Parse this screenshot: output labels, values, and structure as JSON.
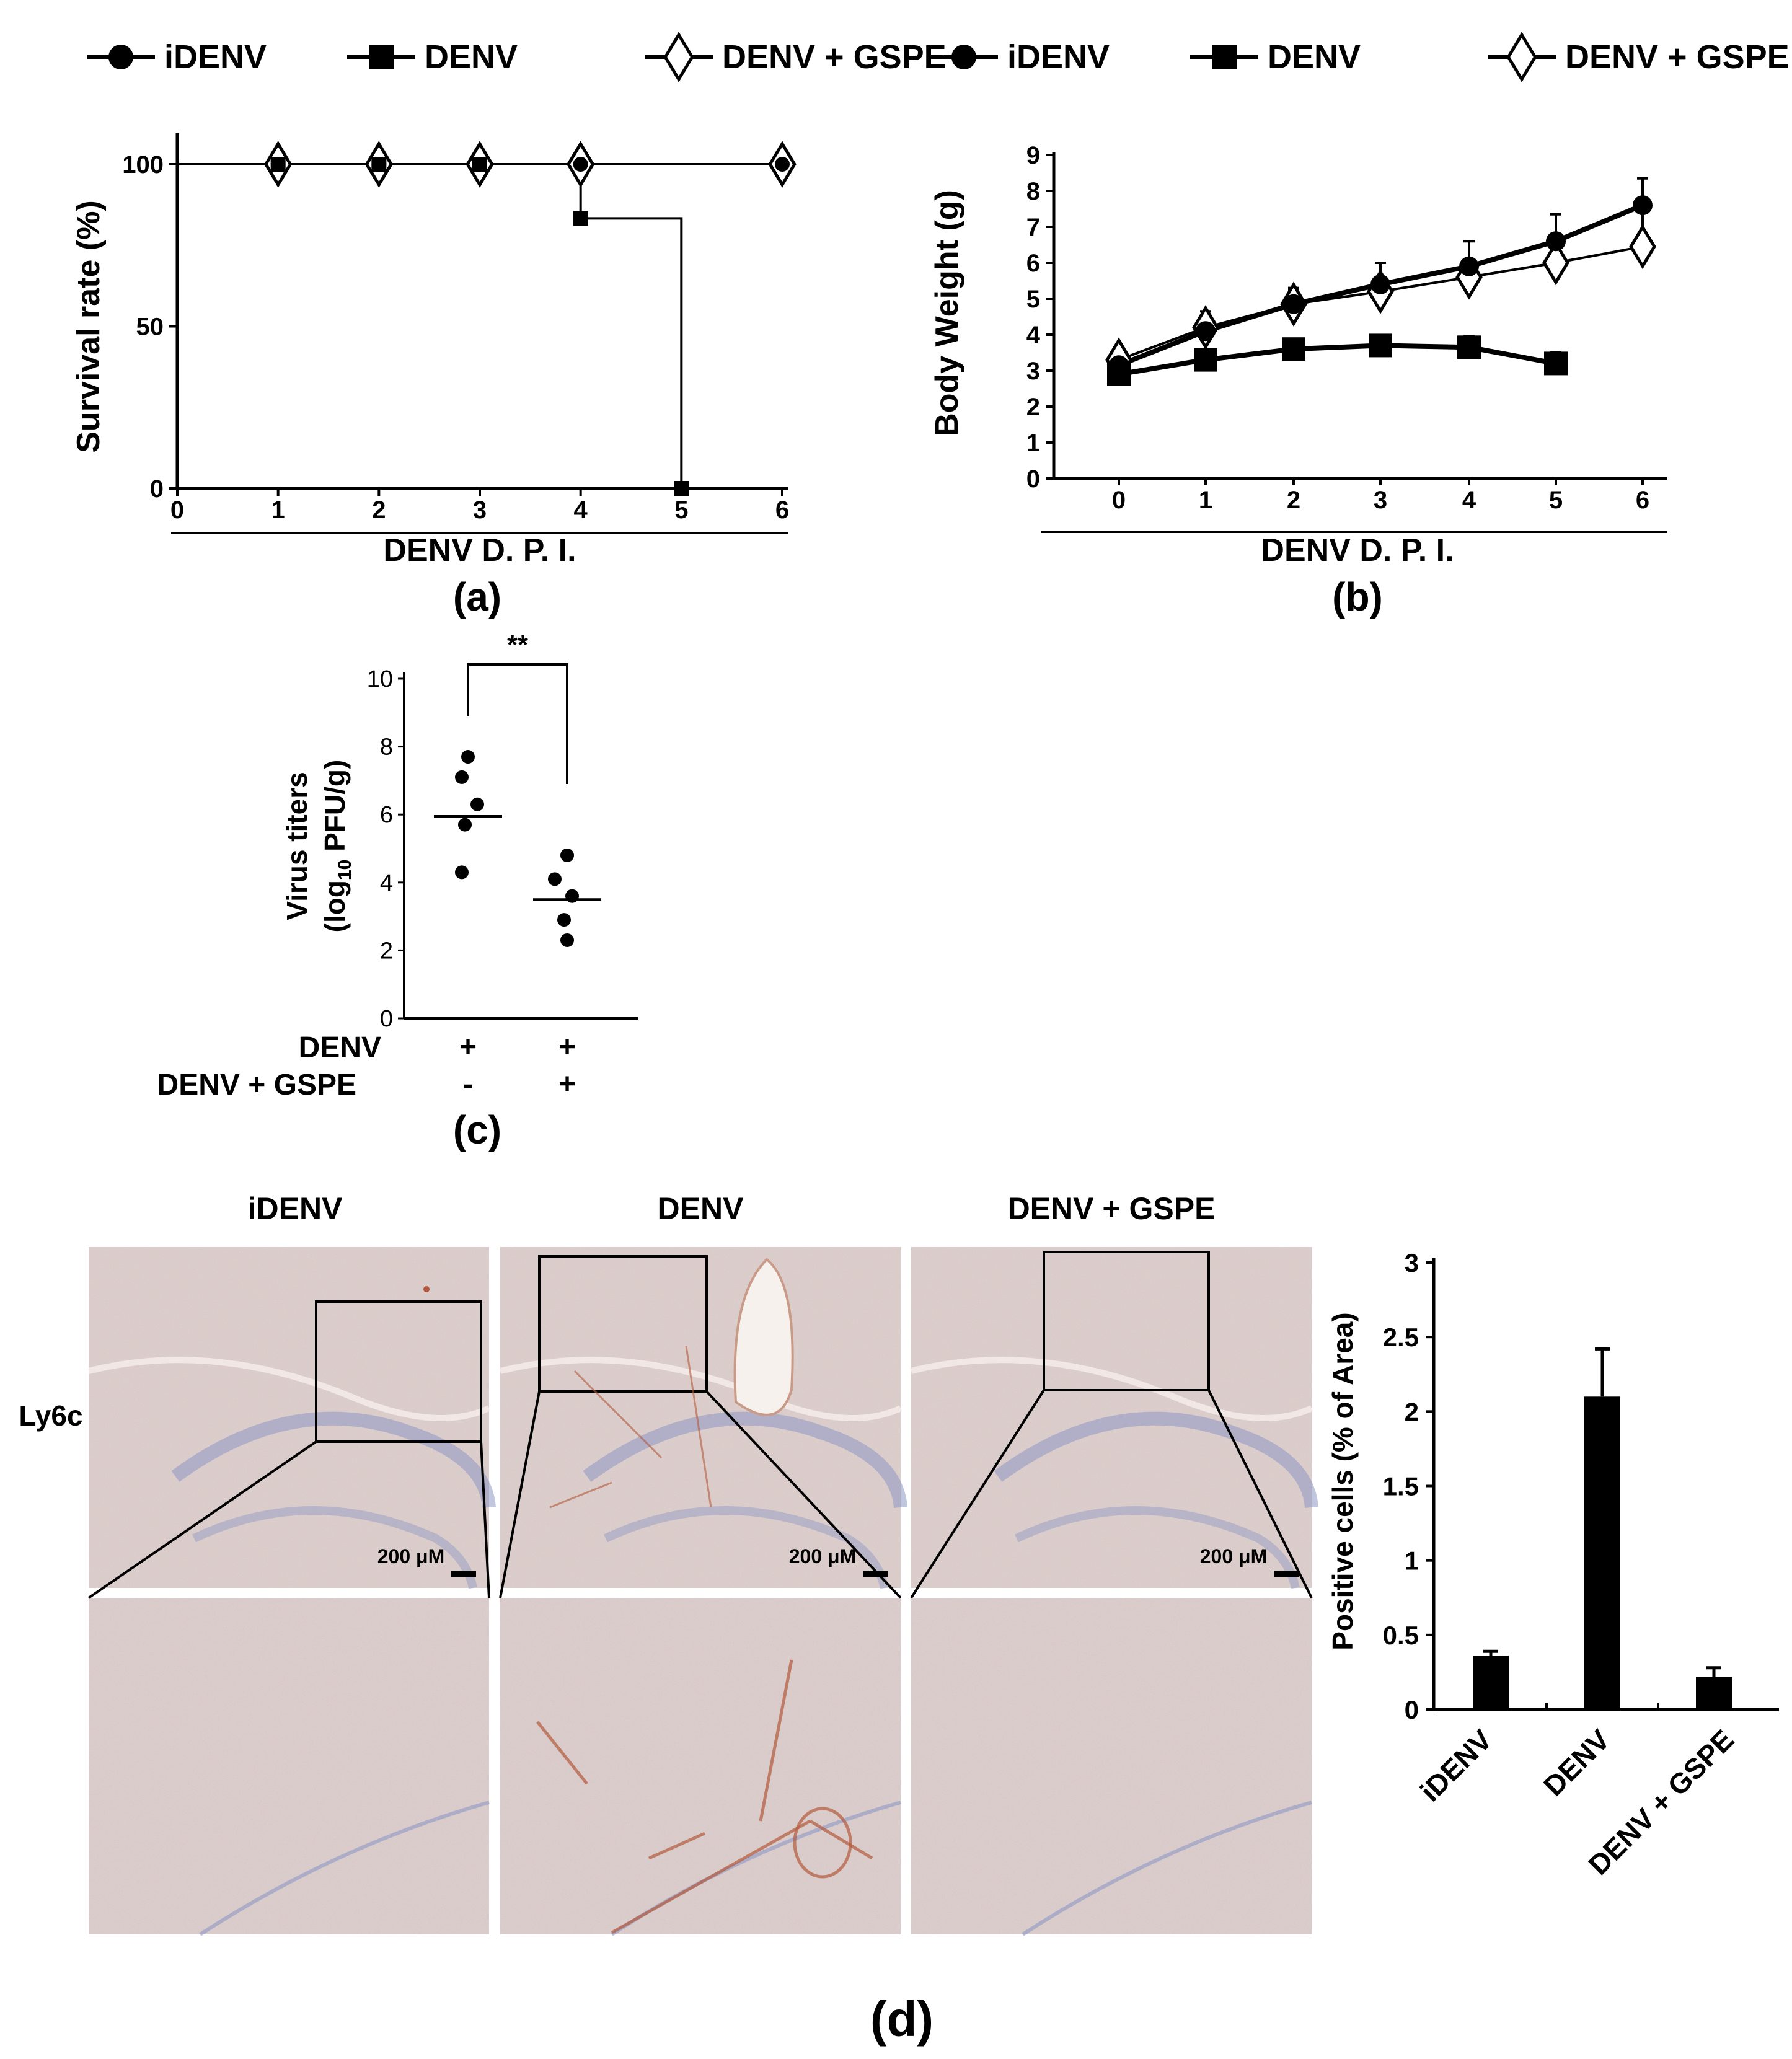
{
  "legend_a": [
    {
      "label": "iDENV",
      "marker": "circle-filled"
    },
    {
      "label": "DENV",
      "marker": "square-filled"
    },
    {
      "label": "DENV  + GSPE",
      "marker": "diamond-open"
    }
  ],
  "legend_b": [
    {
      "label": "iDENV",
      "marker": "circle-filled"
    },
    {
      "label": "DENV",
      "marker": "square-filled"
    },
    {
      "label": "DENV  + GSPE",
      "marker": "diamond-open"
    }
  ],
  "panel_labels": {
    "a": "(a)",
    "b": "(b)",
    "c": "(c)",
    "d": "(d)"
  },
  "colors": {
    "ink": "#000000",
    "tissue_base": "#e3d3cc",
    "hematoxylin": "#8e97c4",
    "dab_stain": "#b45a3c"
  },
  "chart_data": [
    {
      "type": "line",
      "panel": "(a)",
      "xlabel": "DENV D. P. I.",
      "ylabel": "Survival rate (%)",
      "xlim": [
        0,
        6
      ],
      "ylim": [
        0,
        100
      ],
      "xticks": [
        "0",
        "1",
        "2",
        "3",
        "4",
        "5",
        "6"
      ],
      "yticks": [
        "0",
        "50",
        "100"
      ],
      "step": true,
      "series": [
        {
          "name": "iDENV",
          "marker": "circle-filled",
          "x": [
            1,
            2,
            3,
            4,
            6
          ],
          "y": [
            100,
            100,
            100,
            100,
            100
          ]
        },
        {
          "name": "DENV",
          "marker": "square-filled",
          "x": [
            1,
            2,
            3,
            4,
            5
          ],
          "y": [
            100,
            100,
            100,
            83.3,
            0
          ]
        },
        {
          "name": "DENV  + GSPE",
          "marker": "diamond-open",
          "x": [
            1,
            2,
            3,
            4,
            6
          ],
          "y": [
            100,
            100,
            100,
            100,
            100
          ]
        }
      ]
    },
    {
      "type": "line",
      "panel": "(b)",
      "xlabel": "DENV D. P. I.",
      "ylabel": "Body Weight (g)",
      "ylim": [
        0,
        9
      ],
      "xticks": [
        "0",
        "1",
        "2",
        "3",
        "4",
        "5",
        "6"
      ],
      "yticks": [
        "0",
        "1",
        "2",
        "3",
        "4",
        "5",
        "6",
        "7",
        "8",
        "9"
      ],
      "series": [
        {
          "name": "iDENV",
          "marker": "circle-filled",
          "x": [
            0,
            1,
            2,
            3,
            4,
            5,
            6
          ],
          "y": [
            3.15,
            4.1,
            4.85,
            5.4,
            5.9,
            6.6,
            7.6
          ],
          "err": [
            0.15,
            0.25,
            0.45,
            0.6,
            0.7,
            0.75,
            0.75
          ]
        },
        {
          "name": "DENV",
          "marker": "square-filled",
          "x": [
            0,
            1,
            2,
            3,
            4,
            5
          ],
          "y": [
            2.9,
            3.3,
            3.6,
            3.7,
            3.65,
            3.2
          ],
          "err": [
            0.1,
            0.15,
            0.15,
            0.2,
            0.3,
            0.3
          ]
        },
        {
          "name": "DENV  + GSPE",
          "marker": "diamond-open",
          "x": [
            0,
            1,
            2,
            3,
            4,
            5,
            6
          ],
          "y": [
            3.3,
            4.2,
            4.85,
            5.2,
            5.6,
            6.0,
            6.45
          ],
          "err": [
            0.15,
            0.45,
            0.4,
            0.4,
            0.5,
            0.8,
            1.05
          ]
        }
      ]
    },
    {
      "type": "scatter",
      "panel": "(c)",
      "ylabel_line1": "Virus titers",
      "ylabel_line2_pre": "(log",
      "ylabel_line2_sub": "10",
      "ylabel_line2_post": " PFU/g)",
      "ylim": [
        0,
        10
      ],
      "yticks": [
        "0",
        "2",
        "4",
        "6",
        "8",
        "10"
      ],
      "significance": "**",
      "groups": [
        {
          "row1": "+",
          "row2": "-",
          "points": [
            7.7,
            7.1,
            6.3,
            5.7,
            4.3
          ],
          "mean": 5.95
        },
        {
          "row1": "+",
          "row2": "+",
          "points": [
            4.8,
            4.1,
            3.6,
            2.9,
            2.3
          ],
          "mean": 3.5
        }
      ],
      "row_labels": [
        "DENV",
        "DENV  + GSPE"
      ]
    },
    {
      "type": "bar",
      "panel": "(d)",
      "ylabel": "Positive cells (% of Area)",
      "ylim": [
        0,
        3
      ],
      "yticks": [
        "0",
        "0.5",
        "1",
        "1.5",
        "2",
        "2.5",
        "3"
      ],
      "categories": [
        "iDENV",
        "DENV",
        "DENV  + GSPE"
      ],
      "values": [
        0.36,
        2.1,
        0.22
      ],
      "err": [
        0.03,
        0.32,
        0.06
      ]
    }
  ],
  "histology": {
    "row_label": "Ly6c",
    "columns": [
      "iDENV",
      "DENV",
      "DENV  + GSPE"
    ],
    "scale_bar": "200 μM"
  }
}
